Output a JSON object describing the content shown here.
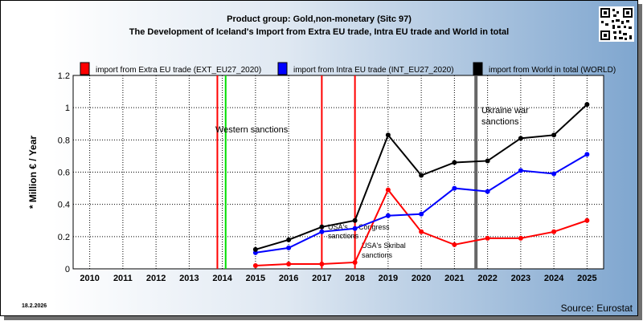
{
  "header": {
    "title_line1": "Product group: Gold,non-monetary (Sitc 97)",
    "title_line2": "The Development of Iceland's Import from Extra EU trade, Intra EU trade and World in total"
  },
  "footer": {
    "date": "18.2.2026",
    "source": "Source: Eurostat"
  },
  "chart_data": {
    "type": "line",
    "title": "The Development of Iceland's Import from Extra EU trade, Intra EU trade and World in total",
    "subtitle": "Product group: Gold,non-monetary (Sitc 97)",
    "xlabel": "",
    "ylabel": "* Million € / Year",
    "ylim": [
      0,
      1.2
    ],
    "yticks": [
      "0",
      "0.2",
      "0.4",
      "0.6",
      "0.8",
      "1",
      "1.2"
    ],
    "categories": [
      "2010",
      "2011",
      "2012",
      "2013",
      "2014",
      "2015",
      "2016",
      "2017",
      "2018",
      "2019",
      "2020",
      "2021",
      "2022",
      "2023",
      "2024",
      "2025"
    ],
    "grid": true,
    "legend_position": "top",
    "series": [
      {
        "name": "import from Extra EU trade (EXT_EU27_2020)",
        "color": "#ff0000",
        "values": [
          null,
          null,
          null,
          null,
          null,
          0.02,
          0.03,
          0.03,
          0.04,
          0.49,
          0.23,
          0.15,
          0.19,
          0.19,
          0.23,
          0.3
        ]
      },
      {
        "name": "import from Intra EU trade (INT_EU27_2020)",
        "color": "#0000ff",
        "values": [
          null,
          null,
          null,
          null,
          null,
          0.1,
          0.13,
          0.23,
          0.25,
          0.33,
          0.34,
          0.5,
          0.48,
          0.61,
          0.59,
          0.71
        ]
      },
      {
        "name": "import from World in total (WORLD)",
        "color": "#000000",
        "values": [
          null,
          null,
          null,
          null,
          null,
          0.12,
          0.18,
          0.26,
          0.3,
          0.83,
          0.58,
          0.66,
          0.67,
          0.81,
          0.83,
          1.02
        ]
      }
    ],
    "annotations": [
      {
        "label": "Western sanctions",
        "color": "#ff0000",
        "year": 2013.85
      },
      {
        "label": "",
        "color": "#00dd00",
        "year": 2014.1
      },
      {
        "label": "USA's Magnitsky act / Congress sanctions",
        "color": "#ff0000",
        "year": 2017.0
      },
      {
        "label": "USA's Skribal sanctions",
        "color": "#ff0000",
        "year": 2018.0
      },
      {
        "label": "Ukraine war sanctions",
        "color": "#666666",
        "year": 2021.65
      }
    ],
    "annotation_texts": {
      "western": "Western sanctions",
      "usa_congress_1": "USA's",
      "usa_congress_2": "Congress",
      "usa_congress_3": "sanctions",
      "usa_skribal_1": "USA's Skribal",
      "usa_skribal_2": "sanctions",
      "ukraine_1": "Ukraine war",
      "ukraine_2": "sanctions"
    }
  }
}
